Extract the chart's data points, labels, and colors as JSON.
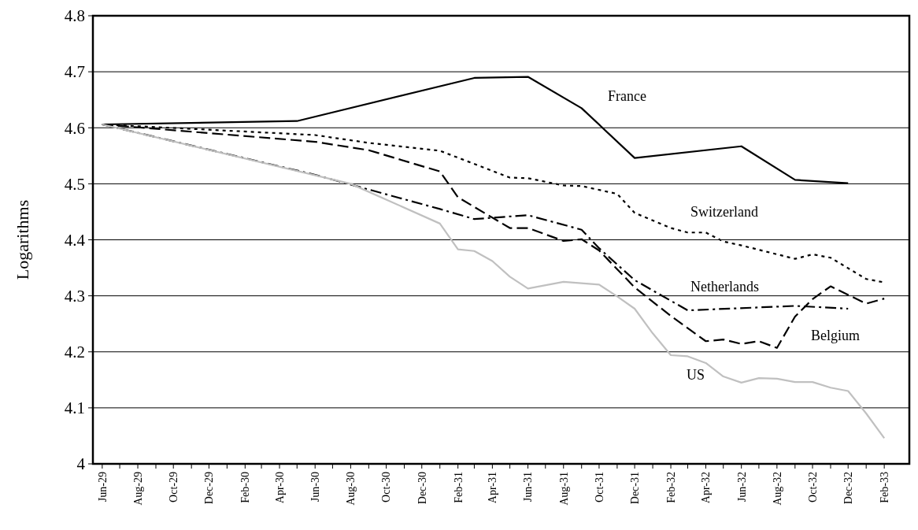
{
  "chart_data": {
    "type": "line",
    "ylabel": "Logarithms",
    "xlim": [
      "1929-05-16",
      "1933-03-16"
    ],
    "xticks": [
      {
        "value": "1929-06",
        "label": "Jun-29"
      },
      {
        "value": "1929-07",
        "label": null
      },
      {
        "value": "1929-08",
        "label": "Aug-29"
      },
      {
        "value": "1929-09",
        "label": null
      },
      {
        "value": "1929-10",
        "label": "Oct-29"
      },
      {
        "value": "1929-11",
        "label": null
      },
      {
        "value": "1929-12",
        "label": "Dec-29"
      },
      {
        "value": "1930-01",
        "label": null
      },
      {
        "value": "1930-02",
        "label": "Feb-30"
      },
      {
        "value": "1930-03",
        "label": null
      },
      {
        "value": "1930-04",
        "label": "Apr-30"
      },
      {
        "value": "1930-05",
        "label": null
      },
      {
        "value": "1930-06",
        "label": "Jun-30"
      },
      {
        "value": "1930-07",
        "label": null
      },
      {
        "value": "1930-08",
        "label": "Aug-30"
      },
      {
        "value": "1930-09",
        "label": null
      },
      {
        "value": "1930-10",
        "label": "Oct-30"
      },
      {
        "value": "1930-11",
        "label": null
      },
      {
        "value": "1930-12",
        "label": "Dec-30"
      },
      {
        "value": "1931-01",
        "label": null
      },
      {
        "value": "1931-02",
        "label": "Feb-31"
      },
      {
        "value": "1931-03",
        "label": null
      },
      {
        "value": "1931-04",
        "label": "Apr-31"
      },
      {
        "value": "1931-05",
        "label": null
      },
      {
        "value": "1931-06",
        "label": "Jun-31"
      },
      {
        "value": "1931-07",
        "label": null
      },
      {
        "value": "1931-08",
        "label": "Aug-31"
      },
      {
        "value": "1931-09",
        "label": null
      },
      {
        "value": "1931-10",
        "label": "Oct-31"
      },
      {
        "value": "1931-11",
        "label": null
      },
      {
        "value": "1931-12",
        "label": "Dec-31"
      },
      {
        "value": "1932-01",
        "label": null
      },
      {
        "value": "1932-02",
        "label": "Feb-32"
      },
      {
        "value": "1932-03",
        "label": null
      },
      {
        "value": "1932-04",
        "label": "Apr-32"
      },
      {
        "value": "1932-05",
        "label": null
      },
      {
        "value": "1932-06",
        "label": "Jun-32"
      },
      {
        "value": "1932-07",
        "label": null
      },
      {
        "value": "1932-08",
        "label": "Aug-32"
      },
      {
        "value": "1932-09",
        "label": null
      },
      {
        "value": "1932-10",
        "label": "Oct-32"
      },
      {
        "value": "1932-11",
        "label": null
      },
      {
        "value": "1932-12",
        "label": "Dec-32"
      },
      {
        "value": "1933-01",
        "label": null
      },
      {
        "value": "1933-02",
        "label": "Feb-33"
      }
    ],
    "ylim": [
      4,
      4.8
    ],
    "yticks": [
      4,
      4.1,
      4.2,
      4.3,
      4.4,
      4.5,
      4.6,
      4.7,
      4.8
    ],
    "grid": "y",
    "marker": "none",
    "series": [
      {
        "name": "France",
        "color": "#000000",
        "line_style": "solid",
        "x": [
          "1929-06",
          "1930-05",
          "1931-03",
          "1931-06",
          "1931-09",
          "1931-12",
          "1932-06",
          "1932-09",
          "1932-12"
        ],
        "values": [
          4.606,
          4.612,
          4.689,
          4.691,
          4.635,
          4.546,
          4.567,
          4.507,
          4.501
        ]
      },
      {
        "name": "Switzerland",
        "color": "#000000",
        "line_style": "dotted",
        "x": [
          "1929-06",
          "1930-06",
          "1930-09",
          "1931-01",
          "1931-05",
          "1931-06",
          "1931-08",
          "1931-09",
          "1931-11",
          "1931-12",
          "1932-02",
          "1932-03",
          "1932-04",
          "1932-05",
          "1932-06",
          "1932-09",
          "1932-10",
          "1932-11",
          "1933-01",
          "1933-02"
        ],
        "values": [
          4.606,
          4.587,
          4.573,
          4.559,
          4.511,
          4.51,
          4.497,
          4.496,
          4.482,
          4.448,
          4.421,
          4.413,
          4.413,
          4.397,
          4.39,
          4.366,
          4.374,
          4.368,
          4.33,
          4.324
        ]
      },
      {
        "name": "Netherlands",
        "color": "#000000",
        "line_style": "dashdot",
        "x": [
          "1929-06",
          "1930-06",
          "1931-01",
          "1931-03",
          "1931-06",
          "1931-09",
          "1931-10",
          "1931-12",
          "1932-03",
          "1932-09",
          "1932-12"
        ],
        "values": [
          4.606,
          4.516,
          4.455,
          4.437,
          4.444,
          4.418,
          4.385,
          4.328,
          4.274,
          4.282,
          4.277
        ]
      },
      {
        "name": "Belgium",
        "color": "#000000",
        "line_style": "dashed",
        "x": [
          "1929-06",
          "1930-06",
          "1930-09",
          "1931-01",
          "1931-02",
          "1931-05",
          "1931-06",
          "1931-08",
          "1931-09",
          "1931-10",
          "1931-12",
          "1932-02",
          "1932-04",
          "1932-05",
          "1932-06",
          "1932-07",
          "1932-08",
          "1932-09",
          "1932-10",
          "1932-11",
          "1933-01",
          "1933-02"
        ],
        "values": [
          4.606,
          4.575,
          4.56,
          4.522,
          4.476,
          4.421,
          4.421,
          4.398,
          4.401,
          4.381,
          4.315,
          4.264,
          4.219,
          4.222,
          4.214,
          4.219,
          4.207,
          4.263,
          4.294,
          4.317,
          4.286,
          4.295
        ]
      },
      {
        "name": "US",
        "color": "#c0c0c0",
        "line_style": "solid",
        "x": [
          "1929-06",
          "1930-08",
          "1931-01",
          "1931-02",
          "1931-03",
          "1931-04",
          "1931-05",
          "1931-06",
          "1931-08",
          "1931-10",
          "1931-11",
          "1931-12",
          "1932-01",
          "1932-02",
          "1932-03",
          "1932-04",
          "1932-05",
          "1932-06",
          "1932-07",
          "1932-08",
          "1932-09",
          "1932-10",
          "1932-11",
          "1932-12",
          "1933-01",
          "1933-02"
        ],
        "values": [
          4.606,
          4.5,
          4.429,
          4.383,
          4.38,
          4.362,
          4.334,
          4.313,
          4.325,
          4.32,
          4.299,
          4.277,
          4.233,
          4.194,
          4.192,
          4.18,
          4.156,
          4.145,
          4.153,
          4.152,
          4.146,
          4.146,
          4.136,
          4.13,
          4.09,
          4.046
        ]
      }
    ]
  }
}
